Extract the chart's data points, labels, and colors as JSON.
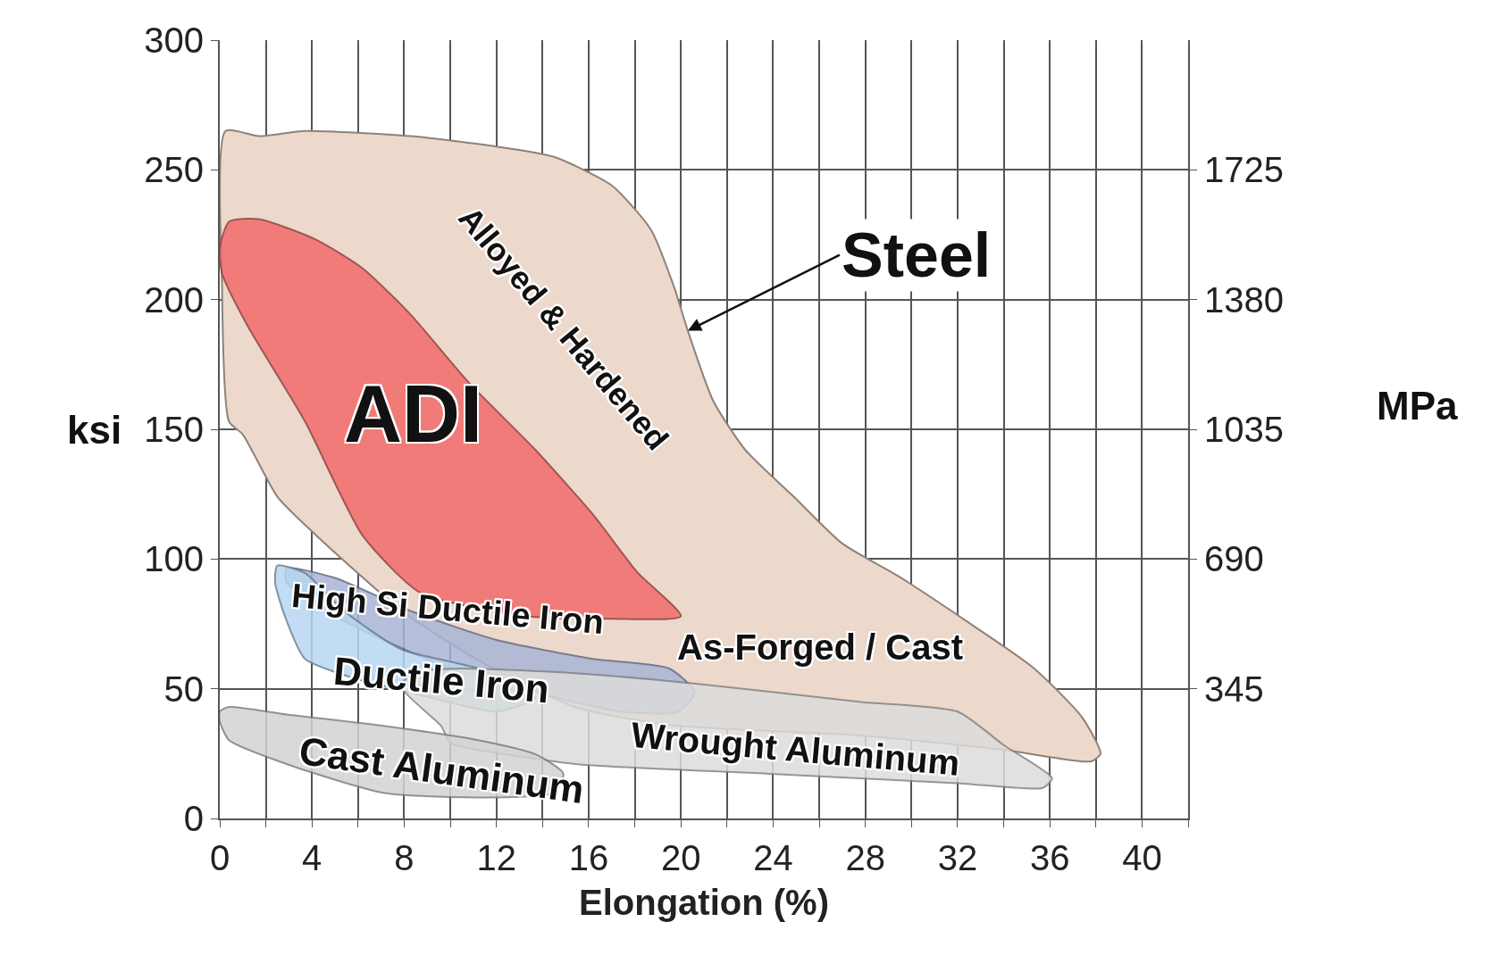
{
  "chart_data": {
    "type": "area",
    "xlabel": "Elongation (%)",
    "ylabel": "ksi",
    "y2label": "MPa",
    "xlim": [
      0,
      42
    ],
    "ylim": [
      0,
      300
    ],
    "y2lim": [
      0,
      2070
    ],
    "xticks": [
      0,
      {
        "value": 2,
        "label": null
      },
      4,
      {
        "value": 6,
        "label": null
      },
      8,
      {
        "value": 10,
        "label": null
      },
      12,
      {
        "value": 14,
        "label": null
      },
      16,
      {
        "value": 18,
        "label": null
      },
      20,
      {
        "value": 22,
        "label": null
      },
      24,
      {
        "value": 26,
        "label": null
      },
      28,
      {
        "value": 30,
        "label": null
      },
      32,
      {
        "value": 34,
        "label": null
      },
      36,
      {
        "value": 38,
        "label": null
      },
      40,
      {
        "value": 42,
        "label": null
      }
    ],
    "yticks": [
      0,
      50,
      100,
      150,
      200,
      250,
      300
    ],
    "y2ticks": [
      345,
      690,
      1035,
      1380,
      1725
    ],
    "grid": true,
    "series": [
      {
        "color": "#ecd9cc",
        "x": [
          0.25,
          1.7,
          3.7,
          8.3,
          12,
          14.5,
          17,
          18.7,
          19.7,
          20.3,
          21.4,
          22.8,
          24.9,
          27,
          29.5,
          32.4,
          35.3,
          37.4,
          38.2,
          37.8,
          34,
          27.8,
          19.5,
          15.4,
          11.2,
          7.9,
          4.2,
          2.5,
          1,
          0.4,
          0.1,
          0.25
        ],
        "values": [
          265,
          263,
          265,
          263,
          259,
          255,
          244,
          227,
          205,
          188,
          161,
          142,
          124,
          106,
          93,
          76,
          58,
          39,
          25,
          22,
          26.5,
          32,
          36,
          43,
          61,
          80,
          109,
          124,
          148,
          153,
          205,
          265
        ]
      },
      {
        "color": "#f26b6b",
        "x": [
          0,
          0.4,
          1.7,
          4.2,
          6.2,
          8.3,
          10.8,
          13.7,
          16.2,
          18.1,
          20,
          17,
          13.3,
          8.7,
          6.2,
          3.7,
          1.2,
          0.1,
          0
        ],
        "values": [
          220,
          230,
          231,
          223,
          212,
          194,
          168,
          142,
          117,
          95,
          78,
          77,
          78,
          87,
          109,
          153,
          190,
          210,
          220
        ]
      },
      {
        "color": "#a9b5d6",
        "x": [
          2.9,
          5,
          8.3,
          12,
          16.2,
          19.5,
          20.6,
          19.9,
          17.4,
          13.7,
          10,
          7.1,
          4.6,
          2.9,
          2.9
        ],
        "values": [
          96.4,
          92.7,
          79.9,
          68.8,
          61.5,
          57.8,
          48.6,
          41.2,
          41.2,
          48.6,
          57.8,
          68.8,
          79.9,
          90.9,
          96.4
        ]
      },
      {
        "color": "#b7d7f2",
        "x": [
          2.5,
          3.7,
          5.4,
          7.9,
          11.2,
          13.7,
          12,
          9.1,
          5.8,
          3.7,
          2.9,
          2.4,
          2.5
        ],
        "values": [
          97.5,
          94.6,
          79.9,
          65.1,
          57.8,
          46.7,
          41.2,
          46.7,
          54.1,
          61.5,
          76.2,
          90.9,
          97.5
        ]
      },
      {
        "color": "#dcdcdc",
        "x": [
          7.9,
          9.6,
          10,
          11.2,
          15.4,
          23.7,
          32,
          35.7,
          36.1,
          34,
          32,
          27.8,
          20.3,
          15.4,
          10.4,
          8.3,
          7.9
        ],
        "values": [
          50.4,
          35.7,
          29,
          26.5,
          21,
          17.3,
          13.6,
          11.8,
          15.5,
          28.3,
          41.2,
          44.9,
          52.3,
          56,
          57.8,
          56,
          50.4
        ]
      },
      {
        "color": "#d3d3d3",
        "x": [
          0,
          0.4,
          2.9,
          7.1,
          11.2,
          13.7,
          14.9,
          14.5,
          11.2,
          7.1,
          2.9,
          0.4,
          0,
          0
        ],
        "values": [
          41.2,
          43,
          40.1,
          35.7,
          30.2,
          24.7,
          17.3,
          9.9,
          8.1,
          9.9,
          21,
          30.2,
          37.5,
          41.2
        ]
      }
    ],
    "annotations": [
      {
        "text": "Steel",
        "x": 20.3,
        "y": 188
      },
      "ADI",
      "Alloyed & Hardened",
      "High Si Ductile Iron",
      "Ductile Iron",
      "As-Forged / Cast",
      "Wrought Aluminum",
      "Cast Aluminum"
    ]
  }
}
